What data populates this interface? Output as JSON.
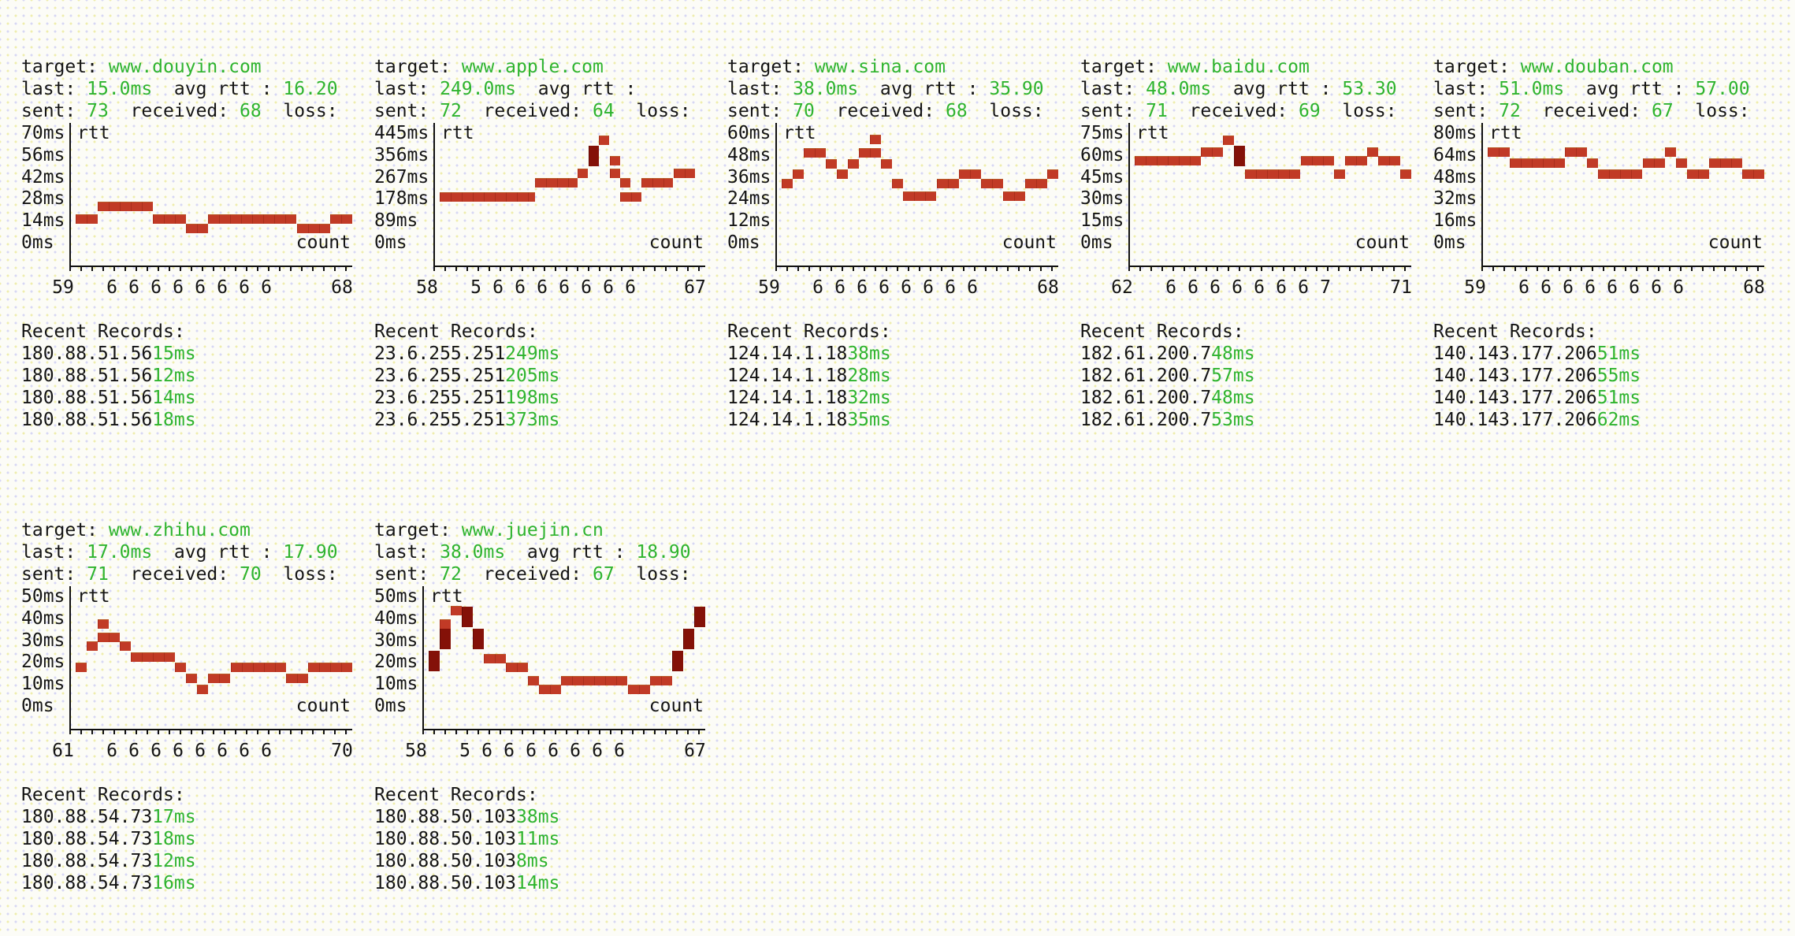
{
  "app": {
    "description": "terminal ping monitor dashboard",
    "colors": {
      "background": "#fcfcf7",
      "dot_yellow": "#efedad",
      "dot_purple": "#d7d7f4",
      "text": "#141414",
      "accent_green": "#2fb42f",
      "block_red": "#c13a26",
      "block_dark_red": "#841108",
      "axis": "#101010"
    }
  },
  "labels": {
    "target_label": "target: ",
    "last_label": "last: ",
    "gap": "  ",
    "avg_label": "avg rtt : ",
    "sent_label": "sent: ",
    "received_label": "received: ",
    "loss_label": "loss:",
    "rtt_axis": "rtt",
    "count_axis": "count",
    "records_title": "Recent Records:"
  },
  "chart_data": [
    {
      "type": "heatmap",
      "row": 0,
      "col": 0,
      "target": "www.douyin.com",
      "last": "15.0ms",
      "avg": "16.20",
      "sent": "73",
      "received": "68",
      "ylabel": "rtt",
      "xlabel": "count",
      "y_tick_labels": [
        "70ms",
        "56ms",
        "42ms",
        "28ms",
        "14ms",
        "0ms"
      ],
      "y_step": 14,
      "ylim": [
        0,
        84
      ],
      "x_first": "59",
      "x_mids": [
        "6",
        "6",
        "6",
        "6",
        "6",
        "6",
        "6",
        "6"
      ],
      "x_last": "68",
      "blocks": [
        [
          0,
          2,
          16,
          0
        ],
        [
          2,
          5,
          24,
          0
        ],
        [
          7,
          3,
          16,
          0
        ],
        [
          10,
          2,
          10,
          0
        ],
        [
          12,
          8,
          16,
          0
        ],
        [
          20,
          3,
          10,
          0
        ],
        [
          23,
          2,
          16,
          0
        ]
      ],
      "records": [
        [
          "180.88.51.56",
          "15ms"
        ],
        [
          "180.88.51.56",
          "12ms"
        ],
        [
          "180.88.51.56",
          "14ms"
        ],
        [
          "180.88.51.56",
          "18ms"
        ]
      ]
    },
    {
      "type": "heatmap",
      "row": 0,
      "col": 1,
      "target": "www.apple.com",
      "last": "249.0ms",
      "avg": "",
      "sent": "72",
      "received": "64",
      "ylabel": "rtt",
      "xlabel": "count",
      "y_tick_labels": [
        "445ms",
        "356ms",
        "267ms",
        "178ms",
        "89ms",
        "0ms"
      ],
      "y_step": 89,
      "ylim": [
        0,
        534
      ],
      "x_first": "58",
      "x_mids": [
        "5",
        "6",
        "6",
        "6",
        "6",
        "6",
        "6",
        "6"
      ],
      "x_last": "67",
      "blocks": [
        [
          0,
          9,
          190,
          0
        ],
        [
          9,
          4,
          247,
          0
        ],
        [
          13,
          1,
          285,
          0
        ],
        [
          14,
          1,
          355,
          1
        ],
        [
          15,
          1,
          422,
          0
        ],
        [
          16,
          1,
          338,
          0
        ],
        [
          16,
          1,
          285,
          0
        ],
        [
          17,
          1,
          247,
          0
        ],
        [
          17,
          2,
          190,
          0
        ],
        [
          19,
          3,
          247,
          0
        ],
        [
          22,
          2,
          285,
          0
        ]
      ],
      "records": [
        [
          "23.6.255.251",
          "249ms"
        ],
        [
          "23.6.255.251",
          "205ms"
        ],
        [
          "23.6.255.251",
          "198ms"
        ],
        [
          "23.6.255.251",
          "373ms"
        ]
      ]
    },
    {
      "type": "heatmap",
      "row": 0,
      "col": 2,
      "target": "www.sina.com",
      "last": "38.0ms",
      "avg": "35.90",
      "sent": "70",
      "received": "68",
      "ylabel": "rtt",
      "xlabel": "count",
      "y_tick_labels": [
        "60ms",
        "48ms",
        "36ms",
        "24ms",
        "12ms",
        "0ms"
      ],
      "y_step": 12,
      "ylim": [
        0,
        72
      ],
      "x_first": "59",
      "x_mids": [
        "6",
        "6",
        "6",
        "6",
        "6",
        "6",
        "6",
        "6"
      ],
      "x_last": "68",
      "blocks": [
        [
          0,
          1,
          33,
          0
        ],
        [
          1,
          1,
          38,
          0
        ],
        [
          2,
          2,
          50,
          0
        ],
        [
          4,
          1,
          44,
          0
        ],
        [
          5,
          1,
          38,
          0
        ],
        [
          6,
          1,
          44,
          0
        ],
        [
          7,
          2,
          50,
          0
        ],
        [
          8,
          1,
          57,
          0
        ],
        [
          9,
          1,
          44,
          0
        ],
        [
          10,
          1,
          33,
          0
        ],
        [
          11,
          3,
          26,
          0
        ],
        [
          14,
          2,
          33,
          0
        ],
        [
          16,
          2,
          38,
          0
        ],
        [
          18,
          2,
          33,
          0
        ],
        [
          20,
          2,
          26,
          0
        ],
        [
          22,
          2,
          33,
          0
        ],
        [
          24,
          1,
          38,
          0
        ]
      ],
      "records": [
        [
          "124.14.1.18",
          "38ms"
        ],
        [
          "124.14.1.18",
          "28ms"
        ],
        [
          "124.14.1.18",
          "32ms"
        ],
        [
          "124.14.1.18",
          "35ms"
        ]
      ]
    },
    {
      "type": "heatmap",
      "row": 0,
      "col": 3,
      "target": "www.baidu.com",
      "last": "48.0ms",
      "avg": "53.30",
      "sent": "71",
      "received": "69",
      "ylabel": "rtt",
      "xlabel": "count",
      "y_tick_labels": [
        "75ms",
        "60ms",
        "45ms",
        "30ms",
        "15ms",
        "0ms"
      ],
      "y_step": 15,
      "ylim": [
        0,
        90
      ],
      "x_first": "62",
      "x_mids": [
        "6",
        "6",
        "6",
        "6",
        "6",
        "6",
        "6",
        "7"
      ],
      "x_last": "71",
      "blocks": [
        [
          0,
          6,
          57,
          0
        ],
        [
          6,
          2,
          63,
          0
        ],
        [
          8,
          1,
          71,
          0
        ],
        [
          9,
          1,
          60,
          1
        ],
        [
          10,
          5,
          48,
          0
        ],
        [
          15,
          3,
          57,
          0
        ],
        [
          18,
          1,
          48,
          0
        ],
        [
          19,
          2,
          57,
          0
        ],
        [
          21,
          1,
          63,
          0
        ],
        [
          22,
          2,
          57,
          0
        ],
        [
          24,
          1,
          48,
          0
        ]
      ],
      "records": [
        [
          "182.61.200.7",
          "48ms"
        ],
        [
          "182.61.200.7",
          "57ms"
        ],
        [
          "182.61.200.7",
          "48ms"
        ],
        [
          "182.61.200.7",
          "53ms"
        ]
      ]
    },
    {
      "type": "heatmap",
      "row": 0,
      "col": 4,
      "target": "www.douban.com",
      "last": "51.0ms",
      "avg": "57.00",
      "sent": "72",
      "received": "67",
      "ylabel": "rtt",
      "xlabel": "count",
      "y_tick_labels": [
        "80ms",
        "64ms",
        "48ms",
        "32ms",
        "16ms",
        "0ms"
      ],
      "y_step": 16,
      "ylim": [
        0,
        96
      ],
      "x_first": "59",
      "x_mids": [
        "6",
        "6",
        "6",
        "6",
        "6",
        "6",
        "6",
        "6"
      ],
      "x_last": "68",
      "blocks": [
        [
          0,
          2,
          67,
          0
        ],
        [
          2,
          5,
          59,
          0
        ],
        [
          7,
          2,
          67,
          0
        ],
        [
          9,
          1,
          59,
          0
        ],
        [
          10,
          4,
          51,
          0
        ],
        [
          14,
          2,
          59,
          0
        ],
        [
          16,
          1,
          67,
          0
        ],
        [
          17,
          1,
          59,
          0
        ],
        [
          18,
          2,
          51,
          0
        ],
        [
          20,
          3,
          59,
          0
        ],
        [
          23,
          2,
          51,
          0
        ]
      ],
      "records": [
        [
          "140.143.177.206",
          "51ms"
        ],
        [
          "140.143.177.206",
          "55ms"
        ],
        [
          "140.143.177.206",
          "51ms"
        ],
        [
          "140.143.177.206",
          "62ms"
        ]
      ]
    },
    {
      "type": "heatmap",
      "row": 1,
      "col": 0,
      "target": "www.zhihu.com",
      "last": "17.0ms",
      "avg": "17.90",
      "sent": "71",
      "received": "70",
      "ylabel": "rtt",
      "xlabel": "count",
      "y_tick_labels": [
        "50ms",
        "40ms",
        "30ms",
        "20ms",
        "10ms",
        "0ms"
      ],
      "y_step": 10,
      "ylim": [
        0,
        60
      ],
      "x_first": "61",
      "x_mids": [
        "6",
        "6",
        "6",
        "6",
        "6",
        "6",
        "6",
        "6"
      ],
      "x_last": "70",
      "blocks": [
        [
          0,
          1,
          18,
          0
        ],
        [
          1,
          1,
          28,
          0
        ],
        [
          2,
          2,
          32,
          0
        ],
        [
          2,
          1,
          38,
          0
        ],
        [
          4,
          1,
          28,
          0
        ],
        [
          5,
          4,
          23,
          0
        ],
        [
          9,
          1,
          18,
          0
        ],
        [
          10,
          1,
          13,
          0
        ],
        [
          11,
          1,
          8,
          0
        ],
        [
          12,
          2,
          13,
          0
        ],
        [
          14,
          5,
          18,
          0
        ],
        [
          19,
          2,
          13,
          0
        ],
        [
          21,
          4,
          18,
          0
        ]
      ],
      "records": [
        [
          "180.88.54.73",
          "17ms"
        ],
        [
          "180.88.54.73",
          "18ms"
        ],
        [
          "180.88.54.73",
          "12ms"
        ],
        [
          "180.88.54.73",
          "16ms"
        ]
      ]
    },
    {
      "type": "heatmap",
      "row": 1,
      "col": 1,
      "target": "www.juejin.cn",
      "last": "38.0ms",
      "avg": "18.90",
      "sent": "72",
      "received": "67",
      "ylabel": "rtt",
      "xlabel": "count",
      "y_tick_labels": [
        "50ms",
        "40ms",
        "30ms",
        "20ms",
        "10ms",
        "0ms"
      ],
      "y_step": 10,
      "ylim": [
        0,
        60
      ],
      "x_first": "58",
      "x_mids": [
        "5",
        "6",
        "6",
        "6",
        "6",
        "6",
        "6",
        "6"
      ],
      "x_last": "67",
      "blocks": [
        [
          0,
          1,
          21,
          1
        ],
        [
          1,
          1,
          38,
          0
        ],
        [
          1,
          1,
          31,
          1
        ],
        [
          2,
          1,
          44,
          0
        ],
        [
          3,
          1,
          41,
          1
        ],
        [
          4,
          1,
          31,
          1
        ],
        [
          5,
          2,
          22,
          0
        ],
        [
          7,
          2,
          18,
          0
        ],
        [
          9,
          1,
          12,
          0
        ],
        [
          10,
          2,
          8,
          0
        ],
        [
          12,
          6,
          12,
          0
        ],
        [
          18,
          2,
          8,
          0
        ],
        [
          20,
          2,
          12,
          0
        ],
        [
          22,
          1,
          21,
          1
        ],
        [
          23,
          1,
          31,
          1
        ],
        [
          24,
          1,
          41,
          1
        ]
      ],
      "records": [
        [
          "180.88.50.103",
          "38ms"
        ],
        [
          "180.88.50.103",
          "11ms"
        ],
        [
          "180.88.50.103",
          "8ms"
        ],
        [
          "180.88.50.103",
          "14ms"
        ]
      ]
    }
  ]
}
